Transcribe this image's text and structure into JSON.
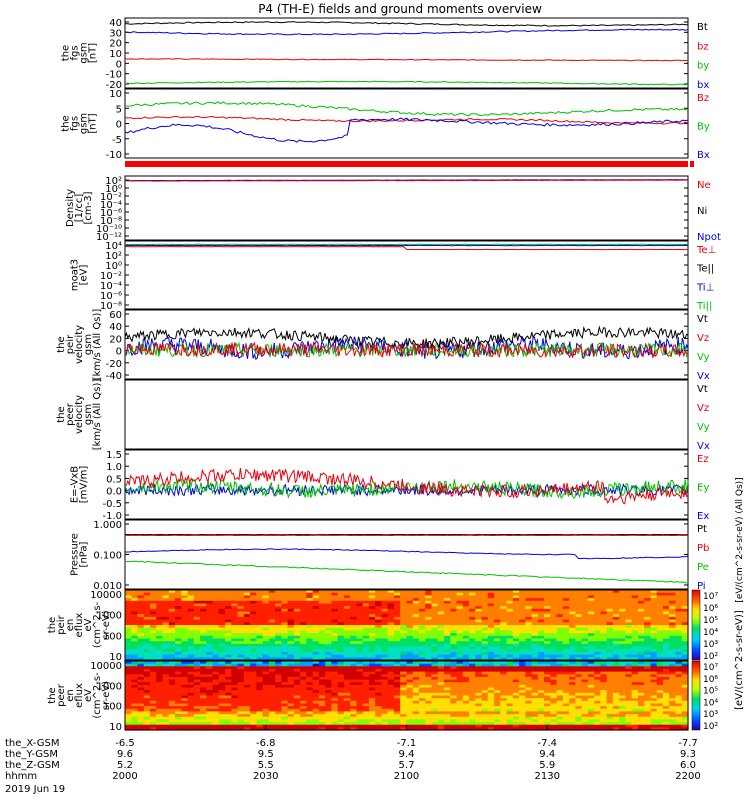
{
  "title": "P4 (TH-E) fields and ground moments overview",
  "colors": {
    "black": "#000000",
    "red": "#e8000b",
    "green": "#00c000",
    "blue": "#0000e6",
    "lime": "#00e000"
  },
  "chart_data": [
    {
      "type": "line",
      "panel": 1,
      "ylabel": [
        "the",
        "fgs",
        "gsm",
        "[nT]"
      ],
      "yticks": [
        "40",
        "30",
        "20",
        "10",
        "0",
        "-10",
        "-20"
      ],
      "ylim": [
        -20,
        40
      ],
      "legend": [
        {
          "name": "Bt",
          "color": "#000000"
        },
        {
          "name": "bz",
          "color": "#e8000b"
        },
        {
          "name": "by",
          "color": "#00c000"
        },
        {
          "name": "bx",
          "color": "#0000e6"
        }
      ],
      "series": [
        {
          "name": "Bt",
          "base": 33
        },
        {
          "name": "bz",
          "base": 5
        },
        {
          "name": "by",
          "base": -16
        },
        {
          "name": "bx",
          "base": 28
        }
      ]
    },
    {
      "type": "line",
      "panel": 2,
      "ylabel": [
        "the",
        "fgs",
        "gsm",
        "[nT]"
      ],
      "yticks": [
        "10",
        "5",
        "0",
        "-5",
        "-10"
      ],
      "ylim": [
        -15,
        10
      ],
      "legend": [
        {
          "name": "Bz",
          "color": "#e8000b"
        },
        {
          "name": "By",
          "color": "#00c000"
        },
        {
          "name": "Bx",
          "color": "#0000e6"
        }
      ],
      "series": [
        {
          "name": "Bz",
          "base": -1
        },
        {
          "name": "By",
          "base": 3
        },
        {
          "name": "Bx",
          "base": -4
        }
      ]
    },
    {
      "type": "line",
      "panel": 3,
      "ylabel": [
        "Density",
        "[1/cc]",
        "[cm-3]"
      ],
      "yticks": [
        "10²",
        "10⁰",
        "10⁻²",
        "10⁻⁴",
        "10⁻⁶",
        "10⁻⁸",
        "10⁻¹⁰",
        "10⁻¹²"
      ],
      "legend": [
        {
          "name": "Ne",
          "color": "#e8000b"
        },
        {
          "name": "Ni",
          "color": "#000000"
        },
        {
          "name": "Npot",
          "color": "#0000e6"
        }
      ]
    },
    {
      "type": "line",
      "panel": 4,
      "ylabel": [
        "moat3",
        "[eV]"
      ],
      "yticks": [
        "10⁴",
        "10²",
        "10⁰",
        "10⁻²",
        "10⁻⁴",
        "10⁻⁶",
        "10⁻⁸"
      ],
      "legend": [
        {
          "name": "Te⊥",
          "color": "#e8000b"
        },
        {
          "name": "Te||",
          "color": "#000000"
        },
        {
          "name": "Ti⊥",
          "color": "#0000e6"
        },
        {
          "name": "Ti||",
          "color": "#00c000"
        }
      ]
    },
    {
      "type": "line",
      "panel": 5,
      "ylabel": [
        "the",
        "peir",
        "velocity",
        "gsm",
        "[km/s (All Qs)]"
      ],
      "yticks": [
        "60",
        "40",
        "20",
        "0",
        "-20",
        "-40"
      ],
      "ylim": [
        -40,
        60
      ],
      "legend": [
        {
          "name": "Vt",
          "color": "#000000"
        },
        {
          "name": "Vz",
          "color": "#e8000b"
        },
        {
          "name": "Vy",
          "color": "#00c000"
        },
        {
          "name": "Vx",
          "color": "#0000e6"
        }
      ]
    },
    {
      "type": "line",
      "panel": 6,
      "ylabel": [
        "the",
        "peer",
        "velocity",
        "gsm",
        "[km/s (All Qs)]"
      ],
      "yticks": [],
      "legend": [
        {
          "name": "Vt",
          "color": "#000000"
        },
        {
          "name": "Vz",
          "color": "#e8000b"
        },
        {
          "name": "Vy",
          "color": "#00c000"
        },
        {
          "name": "Vx",
          "color": "#0000e6"
        }
      ]
    },
    {
      "type": "line",
      "panel": 7,
      "ylabel": [
        "E=-VxB",
        "[mV/m]"
      ],
      "yticks": [
        "1.5",
        "1.0",
        "0.5",
        "0.0",
        "-0.5",
        "-1.0"
      ],
      "ylim": [
        -1.0,
        1.5
      ],
      "legend": [
        {
          "name": "Ez",
          "color": "#e8000b"
        },
        {
          "name": "Ey",
          "color": "#00c000"
        },
        {
          "name": "Ex",
          "color": "#0000e6"
        }
      ]
    },
    {
      "type": "line",
      "panel": 8,
      "ylabel": [
        "Pressure",
        "[nPa]"
      ],
      "yticks": [
        "1.000",
        "0.100",
        "0.010"
      ],
      "legend": [
        {
          "name": "Pt",
          "color": "#000000"
        },
        {
          "name": "Pb",
          "color": "#e8000b"
        },
        {
          "name": "Pe",
          "color": "#00c000"
        },
        {
          "name": "Pi",
          "color": "#0000e6"
        }
      ]
    },
    {
      "type": "heatmap",
      "panel": 9,
      "ylabel": [
        "the",
        "peir",
        "en",
        "eflux",
        "eV",
        "(cm^2-s-",
        "sr-eV)"
      ],
      "yticks": [
        "10000",
        "1000",
        "100",
        "10"
      ]
    },
    {
      "type": "heatmap",
      "panel": 10,
      "ylabel": [
        "the",
        "peer",
        "en",
        "eflux",
        "eV",
        "(cm^2-s-",
        "sr-eV)"
      ],
      "yticks": [
        "10000",
        "1000",
        "100",
        "10"
      ]
    }
  ],
  "colorbar": {
    "label": "[eV/(cm^2-s-sr-eV)]",
    "label2": "[eV/(cm^2-s-sr-eV) (All Qs)]",
    "ticks": [
      "10⁷",
      "10⁶",
      "10⁵",
      "10⁴",
      "10³",
      "10²"
    ]
  },
  "xaxis": {
    "rows": [
      {
        "label": "the_X-GSM",
        "values": [
          "-6.5",
          "-6.8",
          "-7.1",
          "-7.4",
          "-7.7"
        ]
      },
      {
        "label": "the_Y-GSM",
        "values": [
          "9.6",
          "9.5",
          "9.4",
          "9.4",
          "9.3"
        ]
      },
      {
        "label": "the_Z-GSM",
        "values": [
          "5.2",
          "5.5",
          "5.7",
          "5.9",
          "6.0"
        ]
      },
      {
        "label": "hhmm",
        "values": [
          "2000",
          "2030",
          "2100",
          "2130",
          "2200"
        ]
      }
    ],
    "date": "2019 Jun 19"
  }
}
